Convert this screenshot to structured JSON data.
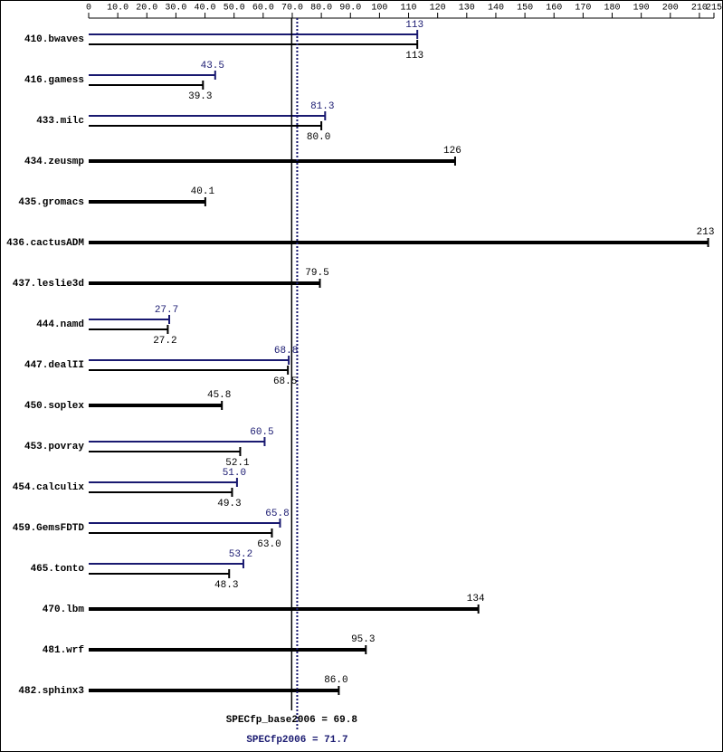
{
  "chart_data": {
    "type": "bar",
    "orientation": "horizontal",
    "categories": [
      "410.bwaves",
      "416.gamess",
      "433.milc",
      "434.zeusmp",
      "435.gromacs",
      "436.cactusADM",
      "437.leslie3d",
      "444.namd",
      "447.dealII",
      "450.soplex",
      "453.povray",
      "454.calculix",
      "459.GemsFDTD",
      "465.tonto",
      "470.lbm",
      "481.wrf",
      "482.sphinx3"
    ],
    "series": [
      {
        "color": "#191970",
        "values": [
          113,
          43.5,
          81.3,
          null,
          null,
          null,
          null,
          27.7,
          68.8,
          null,
          60.5,
          51.0,
          65.8,
          53.2,
          null,
          null,
          null
        ],
        "value_labels": [
          "113",
          "43.5",
          "81.3",
          null,
          null,
          null,
          null,
          "27.7",
          "68.8",
          null,
          "60.5",
          "51.0",
          "65.8",
          "53.2",
          null,
          null,
          null
        ]
      },
      {
        "color": "#000000",
        "values": [
          113,
          39.3,
          80.0,
          126,
          40.1,
          213,
          79.5,
          27.2,
          68.5,
          45.8,
          52.1,
          49.3,
          63.0,
          48.3,
          134,
          95.3,
          86.0
        ],
        "value_labels": [
          "113",
          "39.3",
          "80.0",
          "126",
          "40.1",
          "213",
          "79.5",
          "27.2",
          "68.5",
          "45.8",
          "52.1",
          "49.3",
          "63.0",
          "48.3",
          "134",
          "95.3",
          "86.0"
        ]
      }
    ],
    "xlim": [
      0,
      215
    ],
    "xticks": [
      0,
      {
        "value": 10,
        "label": "10.0"
      },
      {
        "value": 20,
        "label": "20.0"
      },
      {
        "value": 30,
        "label": "30.0"
      },
      {
        "value": 40,
        "label": "40.0"
      },
      {
        "value": 50,
        "label": "50.0"
      },
      {
        "value": 60,
        "label": "60.0"
      },
      {
        "value": 70,
        "label": "70.0"
      },
      {
        "value": 80,
        "label": "80.0"
      },
      {
        "value": 90,
        "label": "90.0"
      },
      100,
      110,
      120,
      130,
      140,
      150,
      160,
      170,
      180,
      190,
      200,
      210,
      215
    ],
    "reference_lines": [
      {
        "label": "SPECfp_base2006 = 69.8",
        "value": 69.8,
        "color": "#000000",
        "style": "solid"
      },
      {
        "label": "SPECfp2006 = 71.7",
        "value": 71.7,
        "color": "#191970",
        "style": "dotted"
      }
    ]
  }
}
